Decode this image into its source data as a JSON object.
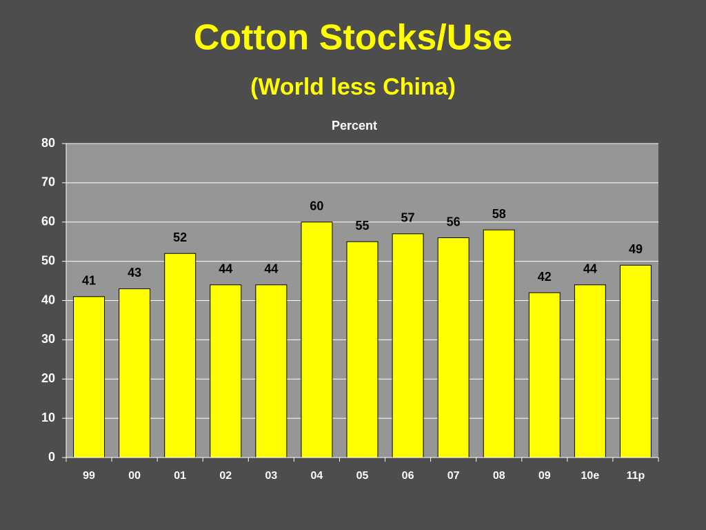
{
  "chart_data": {
    "type": "bar",
    "title": "Cotton Stocks/Use",
    "subtitle": "(World less China)",
    "y_label": "Percent",
    "categories": [
      "99",
      "00",
      "01",
      "02",
      "03",
      "04",
      "05",
      "06",
      "07",
      "08",
      "09",
      "10e",
      "11p"
    ],
    "values": [
      41,
      43,
      52,
      44,
      44,
      60,
      55,
      57,
      56,
      58,
      42,
      44,
      49
    ],
    "color": "#ffff00",
    "ylim": [
      0,
      80
    ],
    "yticks": [
      0,
      10,
      20,
      30,
      40,
      50,
      60,
      70,
      80
    ],
    "grid": true
  }
}
